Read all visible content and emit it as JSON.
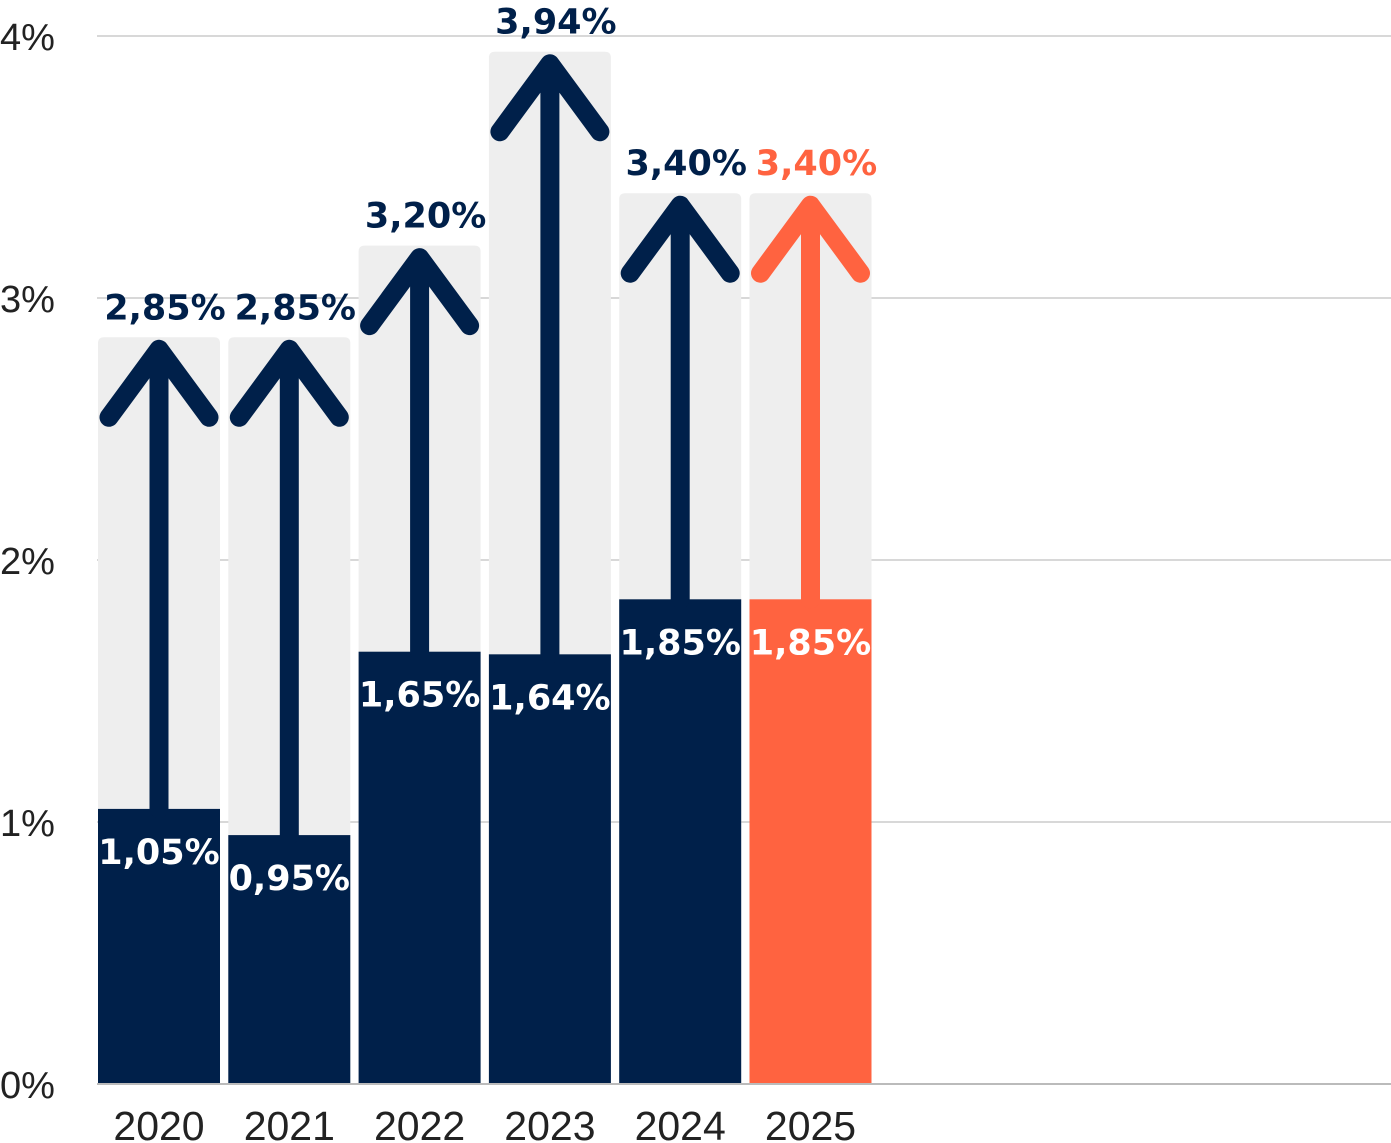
{
  "chart_data": {
    "type": "bar",
    "categories": [
      "2020",
      "2021",
      "2022",
      "2023",
      "2024",
      "2025"
    ],
    "series": [
      {
        "values": [
          1.05,
          0.95,
          1.65,
          1.64,
          1.85,
          1.85
        ],
        "labels": [
          "1,05%",
          "0,95%",
          "1,65%",
          "1,64%",
          "1,85%",
          "1,85%"
        ]
      },
      {
        "values": [
          2.85,
          2.85,
          3.2,
          3.94,
          3.4,
          3.4
        ],
        "labels": [
          "2,85%",
          "2,85%",
          "3,20%",
          "3,94%",
          "3,40%",
          "3,40%"
        ]
      }
    ],
    "highlight_index": 5,
    "ylim": [
      0,
      4
    ],
    "yticks": [
      0,
      1,
      2,
      3,
      4
    ],
    "ytick_labels": [
      "0%",
      "1%",
      "2%",
      "3%",
      "4%"
    ],
    "grid": true,
    "colors": {
      "base": "#00204A",
      "highlight": "#FF6340",
      "range": "#EEEEEE",
      "grid": "#CCCCCC"
    },
    "arrow_icon": "arrow-up-icon"
  }
}
